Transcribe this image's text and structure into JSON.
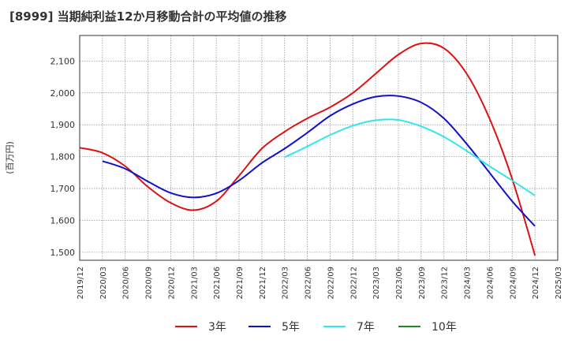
{
  "chart_data": {
    "type": "line",
    "title": "[8999]  当期純利益12か月移動合計の平均値の推移",
    "ylabel": "(百万円)",
    "xlabel": "",
    "ylim": [
      1475,
      2180
    ],
    "yticks": [
      1500,
      1600,
      1700,
      1800,
      1900,
      2000,
      2100
    ],
    "ytick_labels": [
      "1,500",
      "1,600",
      "1,700",
      "1,800",
      "1,900",
      "2,000",
      "2,100"
    ],
    "x_categories": [
      "2019/12",
      "2020/03",
      "2020/06",
      "2020/09",
      "2020/12",
      "2021/03",
      "2021/06",
      "2021/09",
      "2021/12",
      "2022/03",
      "2022/06",
      "2022/09",
      "2022/12",
      "2023/03",
      "2023/06",
      "2023/09",
      "2023/12",
      "2024/03",
      "2024/06",
      "2024/09",
      "2024/12",
      "2025/03"
    ],
    "grid": true,
    "legend_position": "bottom",
    "series": [
      {
        "name": "3年",
        "color": "#dd1111",
        "points": [
          [
            "2019/12",
            1828
          ],
          [
            "2020/03",
            1812
          ],
          [
            "2020/06",
            1770
          ],
          [
            "2020/09",
            1705
          ],
          [
            "2020/12",
            1655
          ],
          [
            "2021/03",
            1632
          ],
          [
            "2021/06",
            1660
          ],
          [
            "2021/09",
            1740
          ],
          [
            "2021/12",
            1825
          ],
          [
            "2022/03",
            1878
          ],
          [
            "2022/06",
            1920
          ],
          [
            "2022/09",
            1955
          ],
          [
            "2022/12",
            2000
          ],
          [
            "2023/03",
            2060
          ],
          [
            "2023/06",
            2120
          ],
          [
            "2023/09",
            2155
          ],
          [
            "2023/12",
            2140
          ],
          [
            "2024/03",
            2060
          ],
          [
            "2024/06",
            1920
          ],
          [
            "2024/09",
            1730
          ],
          [
            "2024/12",
            1490
          ]
        ]
      },
      {
        "name": "5年",
        "color": "#1111cc",
        "points": [
          [
            "2020/03",
            1786
          ],
          [
            "2020/06",
            1762
          ],
          [
            "2020/09",
            1722
          ],
          [
            "2020/12",
            1686
          ],
          [
            "2021/03",
            1672
          ],
          [
            "2021/06",
            1685
          ],
          [
            "2021/09",
            1725
          ],
          [
            "2021/12",
            1780
          ],
          [
            "2022/03",
            1825
          ],
          [
            "2022/06",
            1875
          ],
          [
            "2022/09",
            1928
          ],
          [
            "2022/12",
            1965
          ],
          [
            "2023/03",
            1988
          ],
          [
            "2023/06",
            1990
          ],
          [
            "2023/09",
            1970
          ],
          [
            "2023/12",
            1920
          ],
          [
            "2024/03",
            1840
          ],
          [
            "2024/06",
            1750
          ],
          [
            "2024/09",
            1660
          ],
          [
            "2024/12",
            1582
          ]
        ]
      },
      {
        "name": "7年",
        "color": "#33e5ef",
        "points": [
          [
            "2022/03",
            1798
          ],
          [
            "2022/06",
            1832
          ],
          [
            "2022/09",
            1868
          ],
          [
            "2022/12",
            1897
          ],
          [
            "2023/03",
            1914
          ],
          [
            "2023/06",
            1915
          ],
          [
            "2023/09",
            1895
          ],
          [
            "2023/12",
            1862
          ],
          [
            "2024/03",
            1818
          ],
          [
            "2024/06",
            1770
          ],
          [
            "2024/09",
            1725
          ],
          [
            "2024/12",
            1678
          ]
        ]
      },
      {
        "name": "10年",
        "color": "#228822",
        "points": []
      }
    ]
  }
}
